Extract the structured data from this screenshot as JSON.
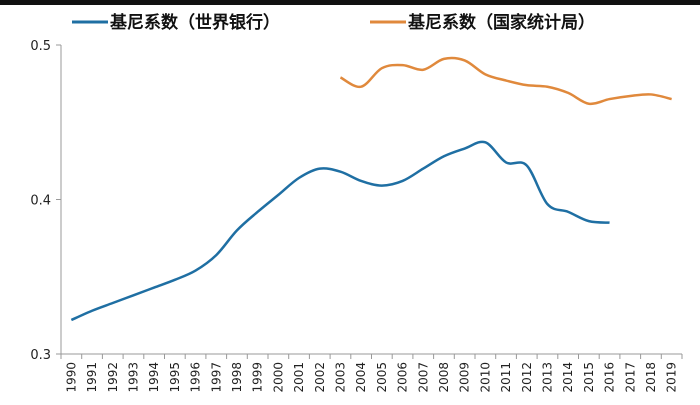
{
  "chart_data": {
    "type": "line",
    "title": "",
    "xlabel": "",
    "ylabel": "",
    "ylim": [
      0.3,
      0.5
    ],
    "yticks": [
      "0.3",
      "0.4",
      "0.5"
    ],
    "grid": false,
    "legend_position": "top",
    "categories": [
      "1990",
      "1991",
      "1992",
      "1993",
      "1994",
      "1995",
      "1996",
      "1997",
      "1998",
      "1999",
      "2000",
      "2001",
      "2002",
      "2003",
      "2004",
      "2005",
      "2006",
      "2007",
      "2008",
      "2009",
      "2010",
      "2011",
      "2012",
      "2013",
      "2014",
      "2015",
      "2016",
      "2017",
      "2018",
      "2019"
    ],
    "series": [
      {
        "name": "基尼系数（世界银行）",
        "color": "#1f6fa3",
        "values": [
          0.322,
          0.328,
          0.333,
          0.338,
          0.343,
          0.348,
          0.354,
          0.364,
          0.38,
          0.392,
          0.403,
          0.414,
          0.42,
          0.418,
          0.412,
          0.409,
          0.412,
          0.42,
          0.428,
          0.433,
          0.437,
          0.424,
          0.422,
          0.397,
          0.392,
          0.386,
          0.385,
          null,
          null,
          null
        ]
      },
      {
        "name": "基尼系数（国家统计局）",
        "color": "#e0893c",
        "values": [
          null,
          null,
          null,
          null,
          null,
          null,
          null,
          null,
          null,
          null,
          null,
          null,
          null,
          0.479,
          0.473,
          0.485,
          0.487,
          0.484,
          0.491,
          0.49,
          0.481,
          0.477,
          0.474,
          0.473,
          0.469,
          0.462,
          0.465,
          0.467,
          0.468,
          0.465
        ]
      }
    ]
  }
}
